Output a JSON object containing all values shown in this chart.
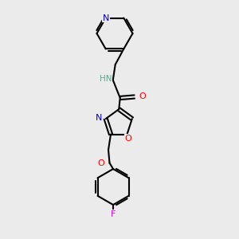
{
  "bg_color": "#ebebeb",
  "atom_colors": {
    "C": "#000000",
    "N": "#0000cc",
    "O": "#ff0000",
    "F": "#cc00cc",
    "H": "#5aaa8a"
  },
  "bond_color": "#000000",
  "figsize": [
    3.0,
    3.0
  ],
  "dpi": 100
}
